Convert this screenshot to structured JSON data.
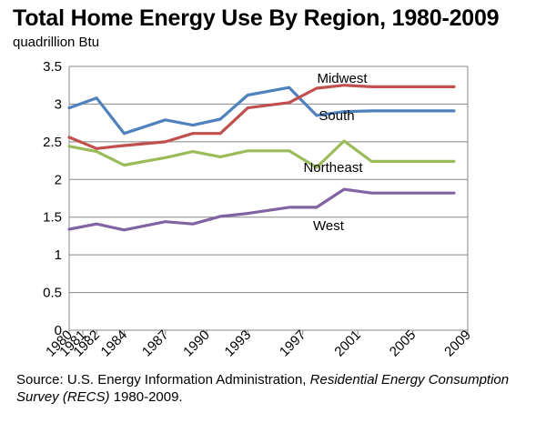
{
  "header": {
    "title": "Total Home Energy Use By Region, 1980-2009",
    "unit": "quadrillion Btu"
  },
  "source": {
    "prefix": "Source: U.S. Energy Information Administration, ",
    "survey": "Residential Energy Consumption Survey (RECS)",
    "suffix": " 1980-2009."
  },
  "chart_data": {
    "type": "line",
    "x": [
      "1980",
      "1981",
      "1982",
      "1984",
      "1987",
      "1990",
      "1993",
      "1997",
      "2001",
      "2005",
      "2009"
    ],
    "x_positions": [
      1980,
      1981,
      1982,
      1984,
      1987,
      1990,
      1993,
      1997,
      2001,
      2005,
      2009
    ],
    "series": [
      {
        "name": "Midwest",
        "color": "#4f81bd",
        "x": [
          1980,
          1982,
          1984,
          1987,
          1989,
          1991,
          1993,
          1996,
          1998,
          2000,
          2002,
          2004,
          2006,
          2008
        ],
        "values": [
          2.95,
          3.08,
          2.61,
          2.79,
          2.72,
          2.8,
          3.12,
          3.22,
          2.85,
          2.9,
          2.91,
          2.91,
          2.91,
          2.91
        ]
      },
      {
        "name": "South",
        "color": "#c0504d",
        "x": [
          1980,
          1982,
          1984,
          1987,
          1989,
          1991,
          1993,
          1996,
          1998,
          2000,
          2002,
          2004,
          2006,
          2008
        ],
        "values": [
          2.56,
          2.41,
          2.45,
          2.5,
          2.61,
          2.61,
          2.95,
          3.02,
          3.21,
          3.25,
          3.23,
          3.23,
          3.23,
          3.23
        ]
      },
      {
        "name": "Northeast",
        "color": "#9bbb59",
        "x": [
          1980,
          1982,
          1984,
          1987,
          1989,
          1991,
          1993,
          1996,
          1998,
          2000,
          2002,
          2004,
          2006,
          2008
        ],
        "values": [
          2.44,
          2.37,
          2.19,
          2.29,
          2.37,
          2.3,
          2.38,
          2.38,
          2.16,
          2.51,
          2.24,
          2.24,
          2.24,
          2.24
        ]
      },
      {
        "name": "West",
        "color": "#8064a2",
        "x": [
          1980,
          1982,
          1984,
          1987,
          1989,
          1991,
          1993,
          1996,
          1998,
          2000,
          2002,
          2004,
          2006,
          2008
        ],
        "values": [
          1.34,
          1.41,
          1.33,
          1.44,
          1.41,
          1.51,
          1.55,
          1.63,
          1.63,
          1.87,
          1.82,
          1.82,
          1.82,
          1.82
        ]
      }
    ],
    "ylim": [
      0,
      3.5
    ],
    "yticks": [
      "0",
      "0.5",
      "1",
      "1.5",
      "2",
      "2.5",
      "3",
      "3.5"
    ],
    "grid": true,
    "legend": "inline labels"
  }
}
